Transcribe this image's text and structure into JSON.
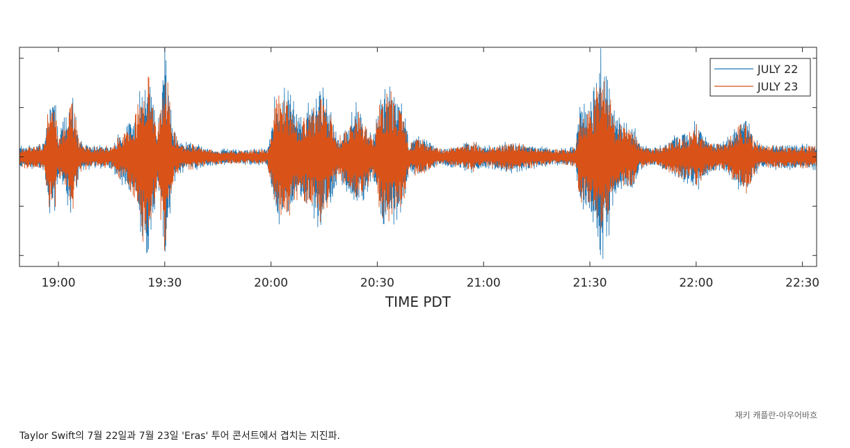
{
  "chart_data": {
    "type": "line",
    "xlabel": "TIME PDT",
    "ylabel": "",
    "x_tick_labels": [
      "19:00",
      "19:30",
      "20:00",
      "20:30",
      "21:00",
      "21:30",
      "22:00",
      "22:30"
    ],
    "x_tick_minutes": [
      1140,
      1170,
      1200,
      1230,
      1260,
      1290,
      1320,
      1350
    ],
    "xlim_minutes": [
      1129,
      1354
    ],
    "ylim": [
      -1,
      1
    ],
    "grid": false,
    "legend_position": "top-right",
    "series": [
      {
        "name": "JULY 22",
        "color": "#1f77b4",
        "envelope": [
          [
            1129,
            0.1
          ],
          [
            1136,
            0.12
          ],
          [
            1137,
            0.5
          ],
          [
            1139,
            0.55
          ],
          [
            1140,
            0.18
          ],
          [
            1142,
            0.4
          ],
          [
            1144,
            0.55
          ],
          [
            1146,
            0.15
          ],
          [
            1150,
            0.1
          ],
          [
            1155,
            0.12
          ],
          [
            1160,
            0.35
          ],
          [
            1162,
            0.3
          ],
          [
            1164,
            0.95
          ],
          [
            1166,
            0.8
          ],
          [
            1168,
            0.25
          ],
          [
            1170,
            1.0
          ],
          [
            1172,
            0.35
          ],
          [
            1174,
            0.15
          ],
          [
            1179,
            0.12
          ],
          [
            1183,
            0.08
          ],
          [
            1190,
            0.07
          ],
          [
            1199,
            0.08
          ],
          [
            1201,
            0.55
          ],
          [
            1203,
            0.65
          ],
          [
            1205,
            0.6
          ],
          [
            1208,
            0.4
          ],
          [
            1212,
            0.55
          ],
          [
            1214,
            0.7
          ],
          [
            1216,
            0.5
          ],
          [
            1219,
            0.2
          ],
          [
            1222,
            0.35
          ],
          [
            1224,
            0.5
          ],
          [
            1226,
            0.4
          ],
          [
            1229,
            0.2
          ],
          [
            1231,
            0.6
          ],
          [
            1234,
            0.65
          ],
          [
            1236,
            0.55
          ],
          [
            1238,
            0.4
          ],
          [
            1239,
            0.12
          ],
          [
            1241,
            0.2
          ],
          [
            1244,
            0.15
          ],
          [
            1246,
            0.1
          ],
          [
            1249,
            0.08
          ],
          [
            1254,
            0.12
          ],
          [
            1257,
            0.15
          ],
          [
            1260,
            0.1
          ],
          [
            1264,
            0.12
          ],
          [
            1268,
            0.15
          ],
          [
            1272,
            0.12
          ],
          [
            1276,
            0.1
          ],
          [
            1279,
            0.08
          ],
          [
            1283,
            0.08
          ],
          [
            1286,
            0.1
          ],
          [
            1287,
            0.45
          ],
          [
            1289,
            0.5
          ],
          [
            1291,
            0.6
          ],
          [
            1293,
            1.0
          ],
          [
            1295,
            0.8
          ],
          [
            1297,
            0.4
          ],
          [
            1300,
            0.3
          ],
          [
            1302,
            0.35
          ],
          [
            1304,
            0.12
          ],
          [
            1308,
            0.08
          ],
          [
            1311,
            0.12
          ],
          [
            1314,
            0.2
          ],
          [
            1318,
            0.25
          ],
          [
            1320,
            0.35
          ],
          [
            1322,
            0.2
          ],
          [
            1324,
            0.15
          ],
          [
            1327,
            0.12
          ],
          [
            1330,
            0.22
          ],
          [
            1332,
            0.3
          ],
          [
            1334,
            0.4
          ],
          [
            1336,
            0.2
          ],
          [
            1338,
            0.12
          ],
          [
            1346,
            0.12
          ],
          [
            1354,
            0.12
          ]
        ]
      },
      {
        "name": "JULY 23",
        "color": "#d95319",
        "envelope": [
          [
            1129,
            0.1
          ],
          [
            1136,
            0.12
          ],
          [
            1137,
            0.45
          ],
          [
            1139,
            0.5
          ],
          [
            1140,
            0.16
          ],
          [
            1142,
            0.35
          ],
          [
            1144,
            0.5
          ],
          [
            1146,
            0.14
          ],
          [
            1150,
            0.09
          ],
          [
            1155,
            0.11
          ],
          [
            1160,
            0.3
          ],
          [
            1162,
            0.4
          ],
          [
            1164,
            0.8
          ],
          [
            1166,
            0.7
          ],
          [
            1168,
            0.25
          ],
          [
            1170,
            0.98
          ],
          [
            1172,
            0.3
          ],
          [
            1174,
            0.13
          ],
          [
            1179,
            0.11
          ],
          [
            1183,
            0.07
          ],
          [
            1190,
            0.06
          ],
          [
            1199,
            0.07
          ],
          [
            1201,
            0.5
          ],
          [
            1203,
            0.6
          ],
          [
            1205,
            0.55
          ],
          [
            1208,
            0.35
          ],
          [
            1212,
            0.5
          ],
          [
            1214,
            0.6
          ],
          [
            1216,
            0.45
          ],
          [
            1219,
            0.18
          ],
          [
            1222,
            0.3
          ],
          [
            1224,
            0.45
          ],
          [
            1226,
            0.35
          ],
          [
            1229,
            0.18
          ],
          [
            1231,
            0.55
          ],
          [
            1234,
            0.6
          ],
          [
            1236,
            0.5
          ],
          [
            1238,
            0.35
          ],
          [
            1239,
            0.11
          ],
          [
            1241,
            0.18
          ],
          [
            1244,
            0.14
          ],
          [
            1246,
            0.09
          ],
          [
            1249,
            0.07
          ],
          [
            1254,
            0.11
          ],
          [
            1257,
            0.14
          ],
          [
            1260,
            0.09
          ],
          [
            1264,
            0.11
          ],
          [
            1268,
            0.14
          ],
          [
            1272,
            0.11
          ],
          [
            1276,
            0.09
          ],
          [
            1279,
            0.07
          ],
          [
            1283,
            0.07
          ],
          [
            1286,
            0.09
          ],
          [
            1287,
            0.4
          ],
          [
            1289,
            0.45
          ],
          [
            1291,
            0.55
          ],
          [
            1293,
            0.75
          ],
          [
            1295,
            0.65
          ],
          [
            1297,
            0.35
          ],
          [
            1300,
            0.25
          ],
          [
            1302,
            0.3
          ],
          [
            1304,
            0.11
          ],
          [
            1308,
            0.07
          ],
          [
            1311,
            0.11
          ],
          [
            1314,
            0.18
          ],
          [
            1318,
            0.22
          ],
          [
            1320,
            0.3
          ],
          [
            1322,
            0.18
          ],
          [
            1324,
            0.14
          ],
          [
            1327,
            0.11
          ],
          [
            1330,
            0.2
          ],
          [
            1332,
            0.28
          ],
          [
            1334,
            0.35
          ],
          [
            1336,
            0.18
          ],
          [
            1338,
            0.11
          ],
          [
            1346,
            0.1
          ],
          [
            1354,
            0.1
          ]
        ]
      }
    ]
  },
  "credit": "재키 캐플란-아우어바흐",
  "caption": "Taylor Swift의 7월 22일과 7월 23일 'Eras' 투어 콘서트에서 겹치는 지진파."
}
